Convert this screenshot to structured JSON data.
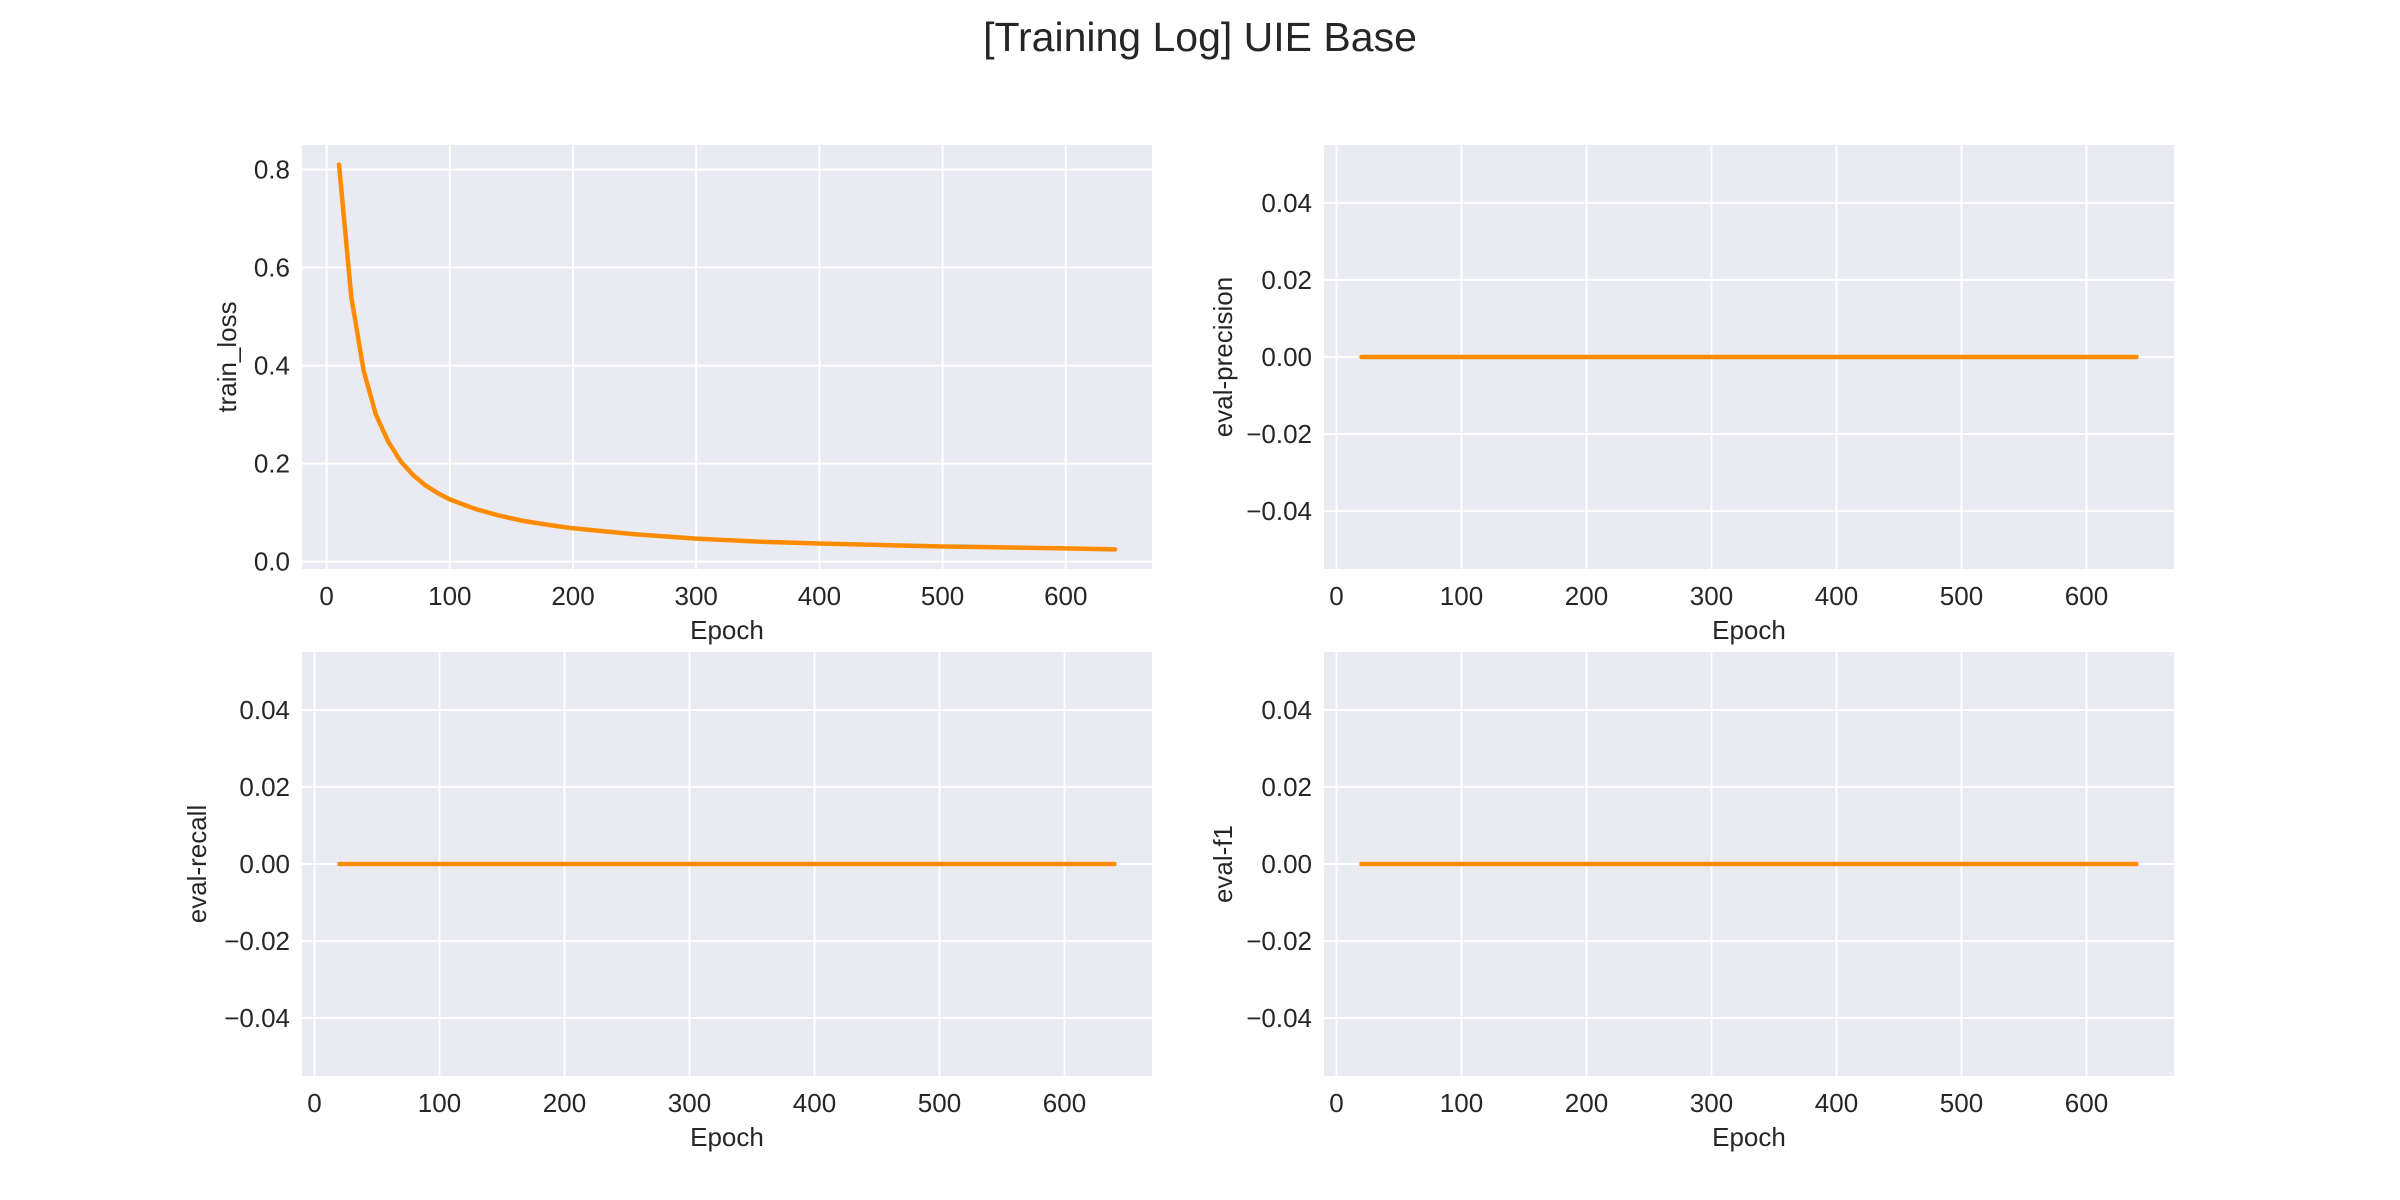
{
  "figure": {
    "title": "[Training Log] UIE Base"
  },
  "theme": {
    "plot_background": "#eaeaf2",
    "grid_color": "#ffffff",
    "line_color": "#ff8c00",
    "text_color": "#262626"
  },
  "chart_data": [
    {
      "type": "line",
      "xlabel": "Epoch",
      "ylabel": "train_loss",
      "xlim": [
        -20,
        670
      ],
      "ylim": [
        -0.015,
        0.85
      ],
      "xticks": [
        0,
        100,
        200,
        300,
        400,
        500,
        600
      ],
      "yticks": [
        0.0,
        0.2,
        0.4,
        0.6,
        0.8
      ],
      "ytick_labels": [
        "0.0",
        "0.2",
        "0.4",
        "0.6",
        "0.8"
      ],
      "grid": true,
      "legend": "none",
      "series": [
        {
          "x": [
            10,
            20,
            30,
            40,
            50,
            60,
            70,
            80,
            90,
            100,
            120,
            140,
            160,
            180,
            200,
            250,
            300,
            350,
            400,
            450,
            500,
            550,
            600,
            640
          ],
          "y": [
            0.81,
            0.54,
            0.39,
            0.3,
            0.245,
            0.205,
            0.177,
            0.156,
            0.14,
            0.127,
            0.108,
            0.094,
            0.083,
            0.075,
            0.068,
            0.056,
            0.047,
            0.041,
            0.037,
            0.034,
            0.031,
            0.029,
            0.027,
            0.025
          ]
        }
      ]
    },
    {
      "type": "line",
      "xlabel": "Epoch",
      "ylabel": "eval-precision",
      "xlim": [
        -10,
        670
      ],
      "ylim": [
        -0.055,
        0.055
      ],
      "xticks": [
        0,
        100,
        200,
        300,
        400,
        500,
        600
      ],
      "yticks": [
        -0.04,
        -0.02,
        0.0,
        0.02,
        0.04
      ],
      "ytick_labels": [
        "−0.04",
        "−0.02",
        "0.00",
        "0.02",
        "0.04"
      ],
      "grid": true,
      "legend": "none",
      "series": [
        {
          "x": [
            20,
            640
          ],
          "y": [
            0.0,
            0.0
          ]
        }
      ]
    },
    {
      "type": "line",
      "xlabel": "Epoch",
      "ylabel": "eval-recall",
      "xlim": [
        -10,
        670
      ],
      "ylim": [
        -0.055,
        0.055
      ],
      "xticks": [
        0,
        100,
        200,
        300,
        400,
        500,
        600
      ],
      "yticks": [
        -0.04,
        -0.02,
        0.0,
        0.02,
        0.04
      ],
      "ytick_labels": [
        "−0.04",
        "−0.02",
        "0.00",
        "0.02",
        "0.04"
      ],
      "grid": true,
      "legend": "none",
      "series": [
        {
          "x": [
            20,
            640
          ],
          "y": [
            0.0,
            0.0
          ]
        }
      ]
    },
    {
      "type": "line",
      "xlabel": "Epoch",
      "ylabel": "eval-f1",
      "xlim": [
        -10,
        670
      ],
      "ylim": [
        -0.055,
        0.055
      ],
      "xticks": [
        0,
        100,
        200,
        300,
        400,
        500,
        600
      ],
      "yticks": [
        -0.04,
        -0.02,
        0.0,
        0.02,
        0.04
      ],
      "ytick_labels": [
        "−0.04",
        "−0.02",
        "0.00",
        "0.02",
        "0.04"
      ],
      "grid": true,
      "legend": "none",
      "series": [
        {
          "x": [
            20,
            640
          ],
          "y": [
            0.0,
            0.0
          ]
        }
      ]
    }
  ]
}
